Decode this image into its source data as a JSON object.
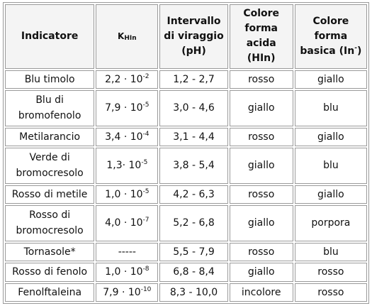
{
  "headers": {
    "indicator": "Indicatore",
    "k_main": "K",
    "k_sub": "HIn",
    "range": [
      "Intervallo",
      "di viraggio",
      "(pH)"
    ],
    "acid": [
      "Colore",
      "forma",
      "acida (HIn)"
    ],
    "basic": [
      "Colore",
      "forma",
      "basica (In"
    ],
    "basic_sup": "-",
    "basic_close": ")"
  },
  "rows": [
    {
      "name": [
        "Blu timolo"
      ],
      "k_base": "2,2 · 10",
      "k_exp": "-2",
      "range": "1,2 - 2,7",
      "acid": "rosso",
      "basic": "giallo"
    },
    {
      "name": [
        "Blu di",
        "bromofenolo"
      ],
      "k_base": "7,9 · 10",
      "k_exp": "-5",
      "range": "3,0 - 4,6",
      "acid": "giallo",
      "basic": "blu"
    },
    {
      "name": [
        "Metilarancio"
      ],
      "k_base": "3,4 · 10",
      "k_exp": "-4",
      "range": "3,1 - 4,4",
      "acid": "rosso",
      "basic": "giallo"
    },
    {
      "name": [
        "Verde di",
        "bromocresolo"
      ],
      "k_base": "1,3· 10",
      "k_exp": "-5",
      "range": "3,8 - 5,4",
      "acid": "giallo",
      "basic": "blu"
    },
    {
      "name": [
        "Rosso di metile"
      ],
      "k_base": "1,0 · 10",
      "k_exp": "-5",
      "range": "4,2 - 6,3",
      "acid": "rosso",
      "basic": "giallo"
    },
    {
      "name": [
        "Rosso di",
        "bromocresolo"
      ],
      "k_base": "4,0 · 10",
      "k_exp": "-7",
      "range": "5,2 - 6,8",
      "acid": "giallo",
      "basic": "porpora"
    },
    {
      "name": [
        "Tornasole*"
      ],
      "k_base": "-----",
      "k_exp": "",
      "range": "5,5 - 7,9",
      "acid": "rosso",
      "basic": "blu"
    },
    {
      "name": [
        "Rosso di fenolo"
      ],
      "k_base": "1,0 · 10",
      "k_exp": "-8",
      "range": "6,8 - 8,4",
      "acid": "giallo",
      "basic": "rosso"
    },
    {
      "name": [
        "Fenolftaleina"
      ],
      "k_base": "7,9 · 10",
      "k_exp": "-10",
      "range": "8,3 - 10,0",
      "acid": "incolore",
      "basic": "rosso"
    }
  ],
  "colors": {
    "border": "#9a9a9a",
    "header_bg": "#f4f4f4",
    "text": "#111111"
  }
}
